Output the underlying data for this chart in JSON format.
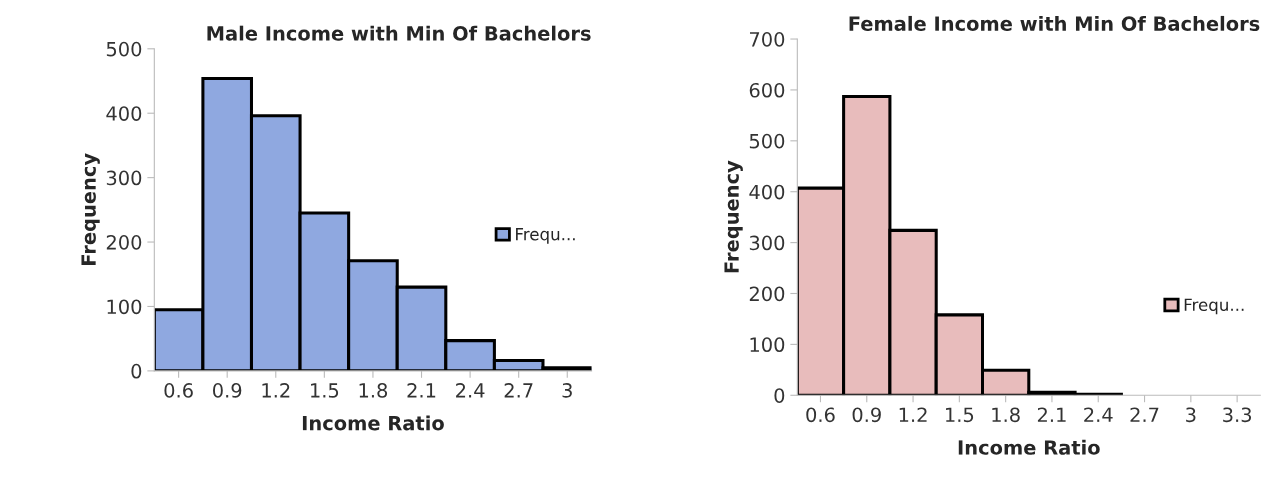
{
  "chart_data": [
    {
      "type": "bar",
      "title": "Male Income with Min Of Bachelors",
      "xlabel": "Income Ratio",
      "ylabel": "Frequency",
      "categories": [
        "0.6",
        "0.9",
        "1.2",
        "1.5",
        "1.8",
        "2.1",
        "2.4",
        "2.7",
        "3"
      ],
      "series": [
        {
          "name": "Frequ...",
          "color": "#8fa8e0",
          "values": [
            95,
            454,
            396,
            245,
            171,
            130,
            47,
            16,
            5
          ]
        }
      ],
      "ylim": [
        0,
        500
      ],
      "yticks": [
        0,
        100,
        200,
        300,
        400,
        500
      ],
      "grid": false,
      "legend": "right"
    },
    {
      "type": "bar",
      "title": "Female Income with Min Of Bachelors",
      "xlabel": "Income Ratio",
      "ylabel": "Frequency",
      "categories": [
        "0.6",
        "0.9",
        "1.2",
        "1.5",
        "1.8",
        "2.1",
        "2.4",
        "2.7",
        "3",
        "3.3"
      ],
      "series": [
        {
          "name": "Frequ...",
          "color": "#e8bcbc",
          "values": [
            407,
            587,
            324,
            158,
            49,
            6,
            2,
            0,
            0,
            0
          ]
        }
      ],
      "ylim": [
        0,
        700
      ],
      "yticks": [
        0,
        100,
        200,
        300,
        400,
        500,
        600,
        700
      ],
      "grid": false,
      "legend": "right"
    }
  ]
}
